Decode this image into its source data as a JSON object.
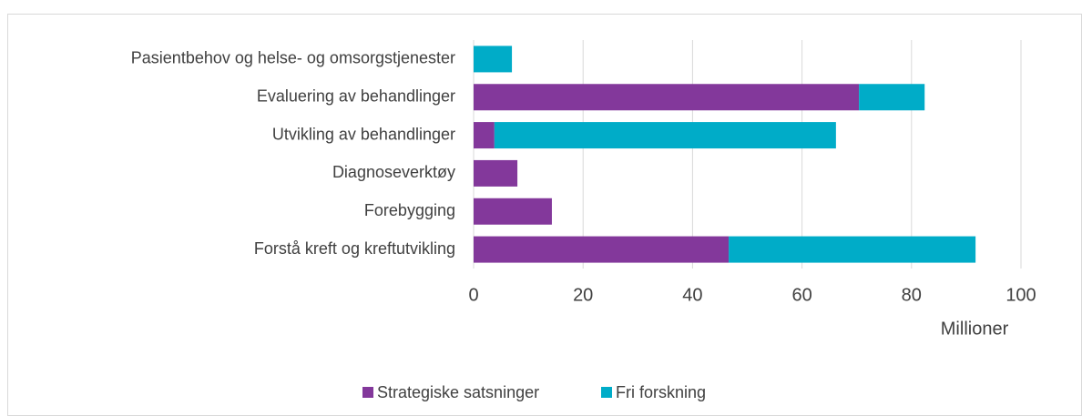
{
  "chart_data": {
    "type": "bar",
    "orientation": "horizontal",
    "stacked": true,
    "categories": [
      "Pasientbehov og helse- og omsorgstjenester",
      "Evaluering av behandlinger",
      "Utvikling av behandlinger",
      "Diagnoseverktøy",
      "Forebygging",
      "Forstå kreft og kreftutvikling"
    ],
    "series": [
      {
        "name": "Strategiske satsninger",
        "color": "#83389b",
        "values": [
          0,
          70.4,
          3.8,
          8,
          14.3,
          46.6
        ]
      },
      {
        "name": "Fri forskning",
        "color": "#00acc8",
        "values": [
          7,
          12,
          62.4,
          0,
          0,
          45.1
        ]
      }
    ],
    "xlim": [
      0,
      100
    ],
    "xticks": [
      0,
      20,
      40,
      60,
      80,
      100
    ],
    "xlabel": "Millioner",
    "grid": true,
    "legend": "bottom"
  }
}
